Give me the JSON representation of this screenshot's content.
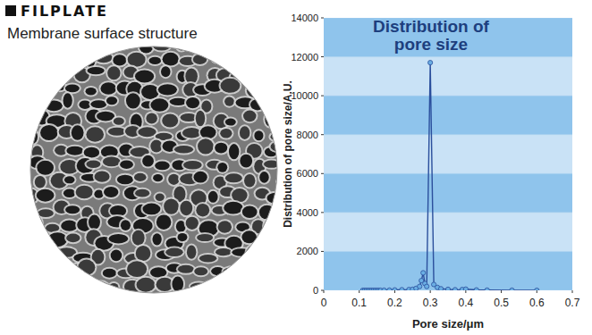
{
  "header": {
    "brand": "FILPLATE",
    "caption": "Membrane surface structure"
  },
  "chart_data": {
    "type": "line",
    "title": "Distribution of pore size",
    "x_label": "Pore size/μm",
    "y_label": "Distribution of pore size/A.U.",
    "x": [
      0.11,
      0.115,
      0.12,
      0.125,
      0.13,
      0.135,
      0.14,
      0.145,
      0.15,
      0.155,
      0.16,
      0.17,
      0.185,
      0.2,
      0.22,
      0.24,
      0.25,
      0.26,
      0.27,
      0.275,
      0.28,
      0.285,
      0.29,
      0.3,
      0.31,
      0.32,
      0.33,
      0.35,
      0.37,
      0.39,
      0.4,
      0.43,
      0.46,
      0.53,
      0.6
    ],
    "values": [
      0,
      0,
      0,
      0,
      0,
      0,
      0,
      0,
      0,
      0,
      0,
      5,
      10,
      20,
      30,
      40,
      50,
      100,
      200,
      500,
      900,
      350,
      200,
      11700,
      300,
      150,
      80,
      50,
      30,
      40,
      60,
      20,
      10,
      5,
      0
    ],
    "color": "#2b4f9c",
    "marker": "circle",
    "xlim": [
      0,
      0.7
    ],
    "ylim": [
      0,
      14000
    ],
    "xticks": [
      0,
      0.1,
      0.2,
      0.3,
      0.4,
      0.5,
      0.6,
      0.7
    ],
    "yticks": [
      0,
      2000,
      4000,
      6000,
      8000,
      10000,
      12000,
      14000
    ],
    "grid": true
  }
}
